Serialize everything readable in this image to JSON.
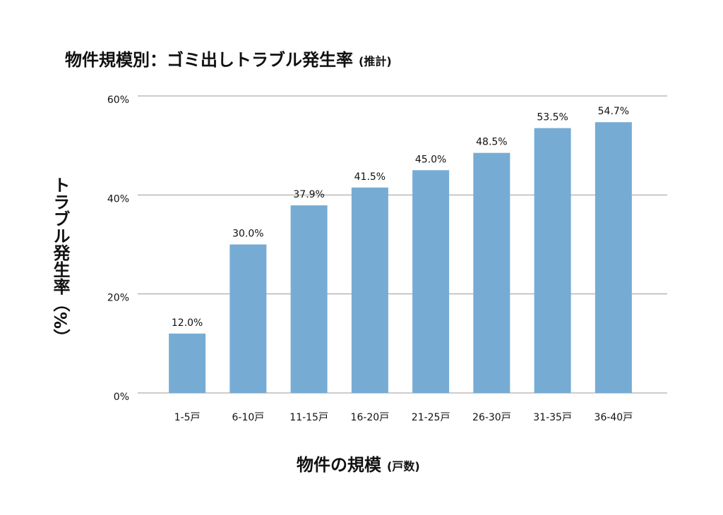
{
  "chart_data": {
    "type": "bar",
    "title": "物件規模別：ゴミ出しトラブル発生率",
    "title_note": "(推計)",
    "x_label": "物件の規模",
    "x_label_note": "(戸数)",
    "y_label": "トラブル発生率（%）",
    "categories": [
      "1-5戸",
      "6-10戸",
      "11-15戸",
      "16-20戸",
      "21-25戸",
      "26-30戸",
      "31-35戸",
      "36-40戸"
    ],
    "values": [
      12.0,
      30.0,
      37.9,
      41.5,
      45.0,
      48.5,
      53.5,
      54.7
    ],
    "value_labels": [
      "12.0%",
      "30.0%",
      "37.9%",
      "41.5%",
      "45.0%",
      "48.5%",
      "53.5%",
      "54.7%"
    ],
    "color": "#76acd4",
    "ylim": [
      0,
      60
    ],
    "yticks": [
      {
        "value": 0,
        "label": "0%"
      },
      {
        "value": 20,
        "label": "20%"
      },
      {
        "value": 40,
        "label": "40%"
      },
      {
        "value": 60,
        "label": "60%"
      }
    ],
    "grid": true
  }
}
